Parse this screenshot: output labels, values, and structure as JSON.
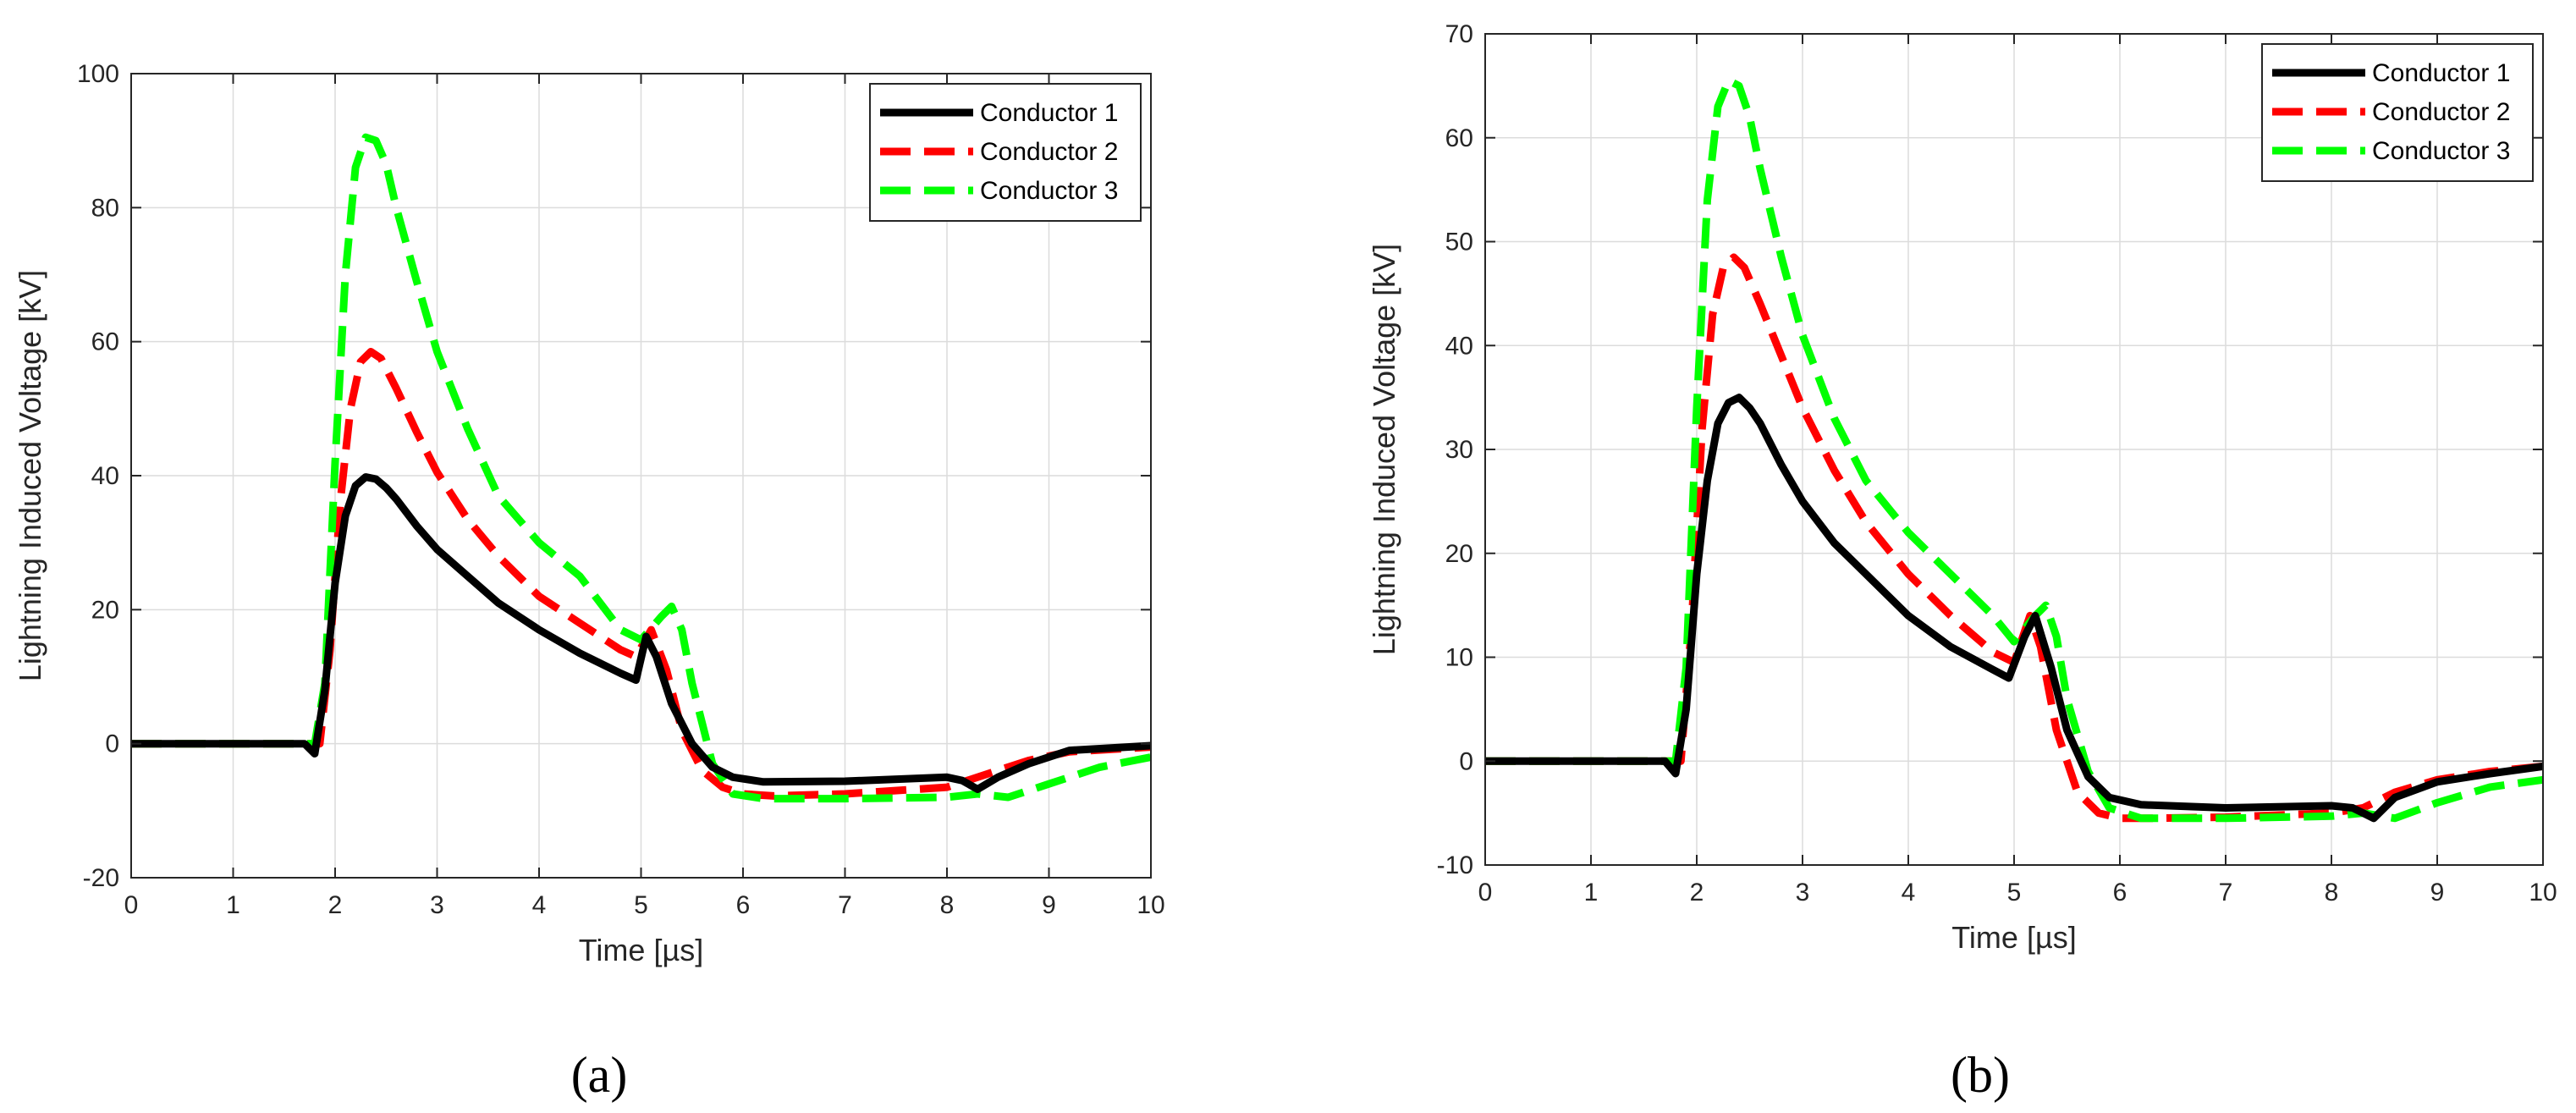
{
  "chart_data": [
    {
      "type": "line",
      "caption": "(a)",
      "xlabel": "Time [µs]",
      "ylabel": "Lightning Induced Voltage [kV]",
      "xlim": [
        0,
        10
      ],
      "ylim": [
        -20,
        100
      ],
      "xticks": [
        0,
        1,
        2,
        3,
        4,
        5,
        6,
        7,
        8,
        9,
        10
      ],
      "yticks": [
        -20,
        0,
        20,
        40,
        60,
        80,
        100
      ],
      "grid": true,
      "legend_position": "top-right",
      "series": [
        {
          "name": "Conductor 1",
          "color": "#000000",
          "style": "solid",
          "x": [
            0,
            1.7,
            1.8,
            1.9,
            2.0,
            2.1,
            2.2,
            2.3,
            2.4,
            2.5,
            2.6,
            2.8,
            3.0,
            3.3,
            3.6,
            4.0,
            4.4,
            4.8,
            4.95,
            5.05,
            5.15,
            5.3,
            5.5,
            5.7,
            5.9,
            6.2,
            7,
            8,
            8.15,
            8.3,
            8.5,
            8.8,
            9.2,
            10
          ],
          "y": [
            0,
            0,
            -1.5,
            8,
            24,
            34,
            38.5,
            39.8,
            39.5,
            38.2,
            36.5,
            32.5,
            29,
            25,
            21,
            17,
            13.5,
            10.5,
            9.5,
            16,
            13,
            6,
            0,
            -3.5,
            -5,
            -5.7,
            -5.6,
            -5,
            -5.5,
            -6.8,
            -5,
            -3,
            -1,
            -0.3
          ]
        },
        {
          "name": "Conductor 2",
          "color": "#ff0000",
          "style": "dashed",
          "x": [
            0,
            1.75,
            1.85,
            1.95,
            2.05,
            2.15,
            2.25,
            2.35,
            2.45,
            2.6,
            2.8,
            3.0,
            3.3,
            3.6,
            4.0,
            4.4,
            4.8,
            4.95,
            5.1,
            5.25,
            5.4,
            5.6,
            5.8,
            6.0,
            6.3,
            7,
            8,
            8.2,
            8.5,
            8.8,
            9.2,
            10
          ],
          "y": [
            0,
            0,
            0,
            14,
            36,
            50,
            57,
            58.5,
            57.5,
            53,
            46.5,
            40.5,
            33.5,
            28,
            22,
            18,
            14,
            13,
            17,
            11,
            2,
            -4,
            -6.5,
            -7.5,
            -7.8,
            -7.5,
            -6.5,
            -5.5,
            -4,
            -2.5,
            -1.2,
            -0.5
          ]
        },
        {
          "name": "Conductor 3",
          "color": "#00ff00",
          "style": "dashed",
          "x": [
            0,
            1.8,
            1.9,
            2.0,
            2.1,
            2.2,
            2.3,
            2.4,
            2.5,
            2.6,
            2.8,
            3.0,
            3.3,
            3.6,
            4.0,
            4.4,
            4.8,
            5.0,
            5.2,
            5.3,
            5.4,
            5.5,
            5.7,
            5.9,
            6.2,
            7,
            8,
            8.3,
            8.6,
            9.0,
            9.5,
            10
          ],
          "y": [
            0,
            0,
            9,
            42,
            70,
            86,
            90.5,
            90,
            86.5,
            80,
            69,
            58.5,
            47,
            37,
            30,
            25,
            17,
            15.5,
            19,
            20.5,
            17,
            9,
            -3,
            -7.5,
            -8.2,
            -8.2,
            -8,
            -7.5,
            -8,
            -6,
            -3.5,
            -2
          ]
        }
      ]
    },
    {
      "type": "line",
      "caption": "(b)",
      "xlabel": "Time [µs]",
      "ylabel": "Lightning Induced Voltage [kV]",
      "xlim": [
        0,
        10
      ],
      "ylim": [
        -10,
        70
      ],
      "xticks": [
        0,
        1,
        2,
        3,
        4,
        5,
        6,
        7,
        8,
        9,
        10
      ],
      "yticks": [
        -10,
        0,
        10,
        20,
        30,
        40,
        50,
        60,
        70
      ],
      "grid": true,
      "legend_position": "top-right",
      "series": [
        {
          "name": "Conductor 1",
          "color": "#000000",
          "style": "solid",
          "x": [
            0,
            1.7,
            1.8,
            1.9,
            2.0,
            2.1,
            2.2,
            2.3,
            2.4,
            2.5,
            2.6,
            2.8,
            3.0,
            3.3,
            3.6,
            4.0,
            4.4,
            4.8,
            4.95,
            5.1,
            5.2,
            5.35,
            5.5,
            5.7,
            5.9,
            6.2,
            7,
            8,
            8.2,
            8.4,
            8.6,
            9.0,
            9.5,
            10
          ],
          "y": [
            0,
            0,
            -1.2,
            5,
            18,
            27,
            32.5,
            34.5,
            35,
            34,
            32.5,
            28.5,
            25,
            21,
            18,
            14,
            11,
            8.8,
            8,
            12,
            14,
            9,
            3,
            -1.5,
            -3.5,
            -4.2,
            -4.5,
            -4.3,
            -4.5,
            -5.5,
            -3.5,
            -2,
            -1.2,
            -0.5
          ]
        },
        {
          "name": "Conductor 2",
          "color": "#ff0000",
          "style": "dashed",
          "x": [
            0,
            1.75,
            1.85,
            1.95,
            2.05,
            2.15,
            2.25,
            2.35,
            2.45,
            2.6,
            2.8,
            3.0,
            3.3,
            3.6,
            4.0,
            4.4,
            4.8,
            5.0,
            5.15,
            5.25,
            5.4,
            5.6,
            5.8,
            6.0,
            6.3,
            7,
            8,
            8.3,
            8.6,
            9.0,
            9.5,
            10
          ],
          "y": [
            0,
            0,
            0,
            13,
            32,
            43,
            47.5,
            48.5,
            47.5,
            44,
            39,
            34,
            28,
            23,
            18,
            14,
            10.5,
            9.5,
            14,
            11,
            3,
            -3,
            -5,
            -5.5,
            -5.5,
            -5.4,
            -5,
            -4.5,
            -3,
            -1.8,
            -1,
            -0.5
          ]
        },
        {
          "name": "Conductor 3",
          "color": "#00ff00",
          "style": "dashed",
          "x": [
            0,
            1.8,
            1.9,
            2.0,
            2.1,
            2.2,
            2.3,
            2.4,
            2.5,
            2.6,
            2.8,
            3.0,
            3.3,
            3.6,
            4.0,
            4.4,
            4.8,
            5.0,
            5.2,
            5.3,
            5.4,
            5.5,
            5.7,
            5.9,
            6.2,
            7,
            8,
            8.3,
            8.6,
            9.0,
            9.5,
            10
          ],
          "y": [
            0,
            0,
            9,
            34,
            54,
            63,
            65.5,
            65,
            62,
            57,
            48.5,
            41,
            33,
            27,
            22,
            18,
            14,
            11.5,
            14,
            15,
            12,
            6,
            -1,
            -4.5,
            -5.5,
            -5.5,
            -5.3,
            -5,
            -5.5,
            -4,
            -2.5,
            -1.8
          ]
        }
      ]
    }
  ]
}
